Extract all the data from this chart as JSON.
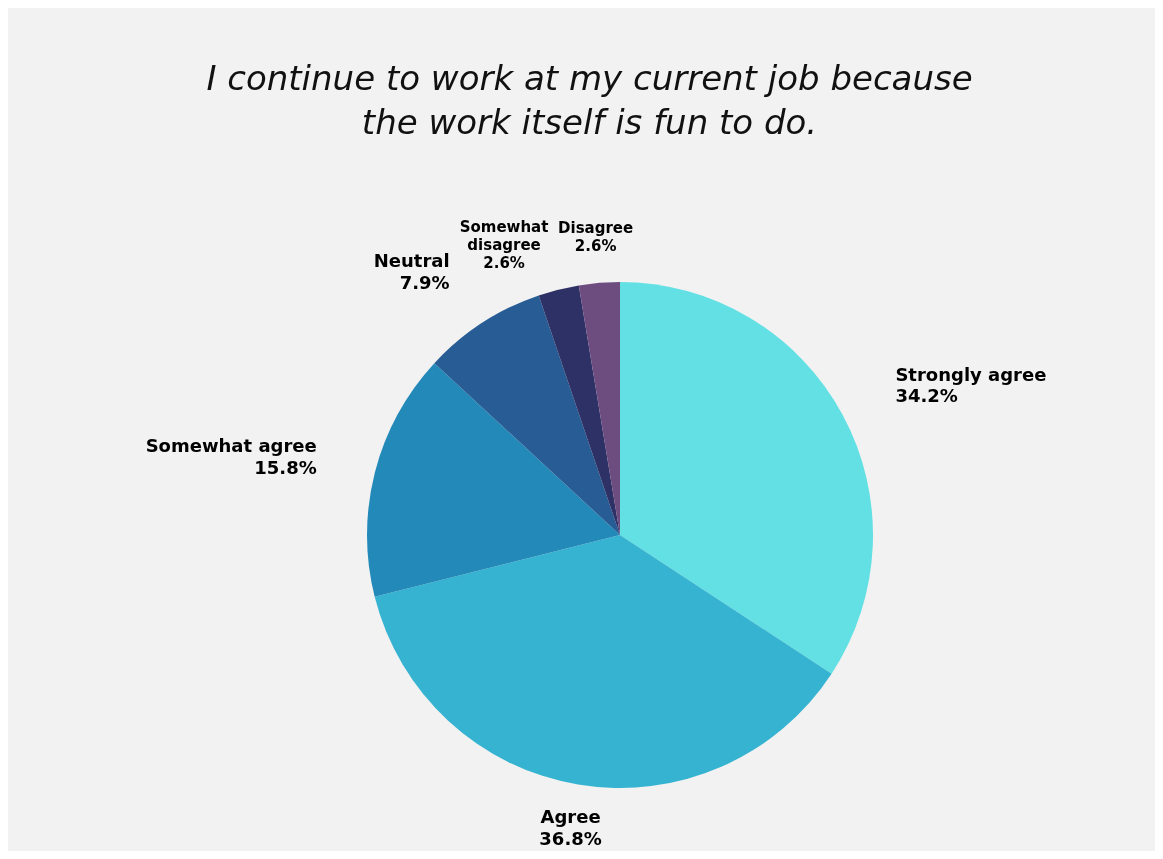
{
  "chart_data": {
    "type": "pie",
    "title": "I continue to work at my current job because the work itself is fun to do.",
    "categories": [
      "Strongly agree",
      "Agree",
      "Somewhat agree",
      "Neutral",
      "Somewhat disagree",
      "Disagree"
    ],
    "values": [
      34.2,
      36.8,
      15.8,
      7.9,
      2.6,
      2.6
    ],
    "colors": [
      "#63e0e4",
      "#35b3d1",
      "#2389b9",
      "#275c94",
      "#2e3166",
      "#6d4c80"
    ],
    "value_labels": [
      "34.2%",
      "36.8%",
      "15.8%",
      "7.9%",
      "2.6%",
      "2.6%"
    ]
  }
}
